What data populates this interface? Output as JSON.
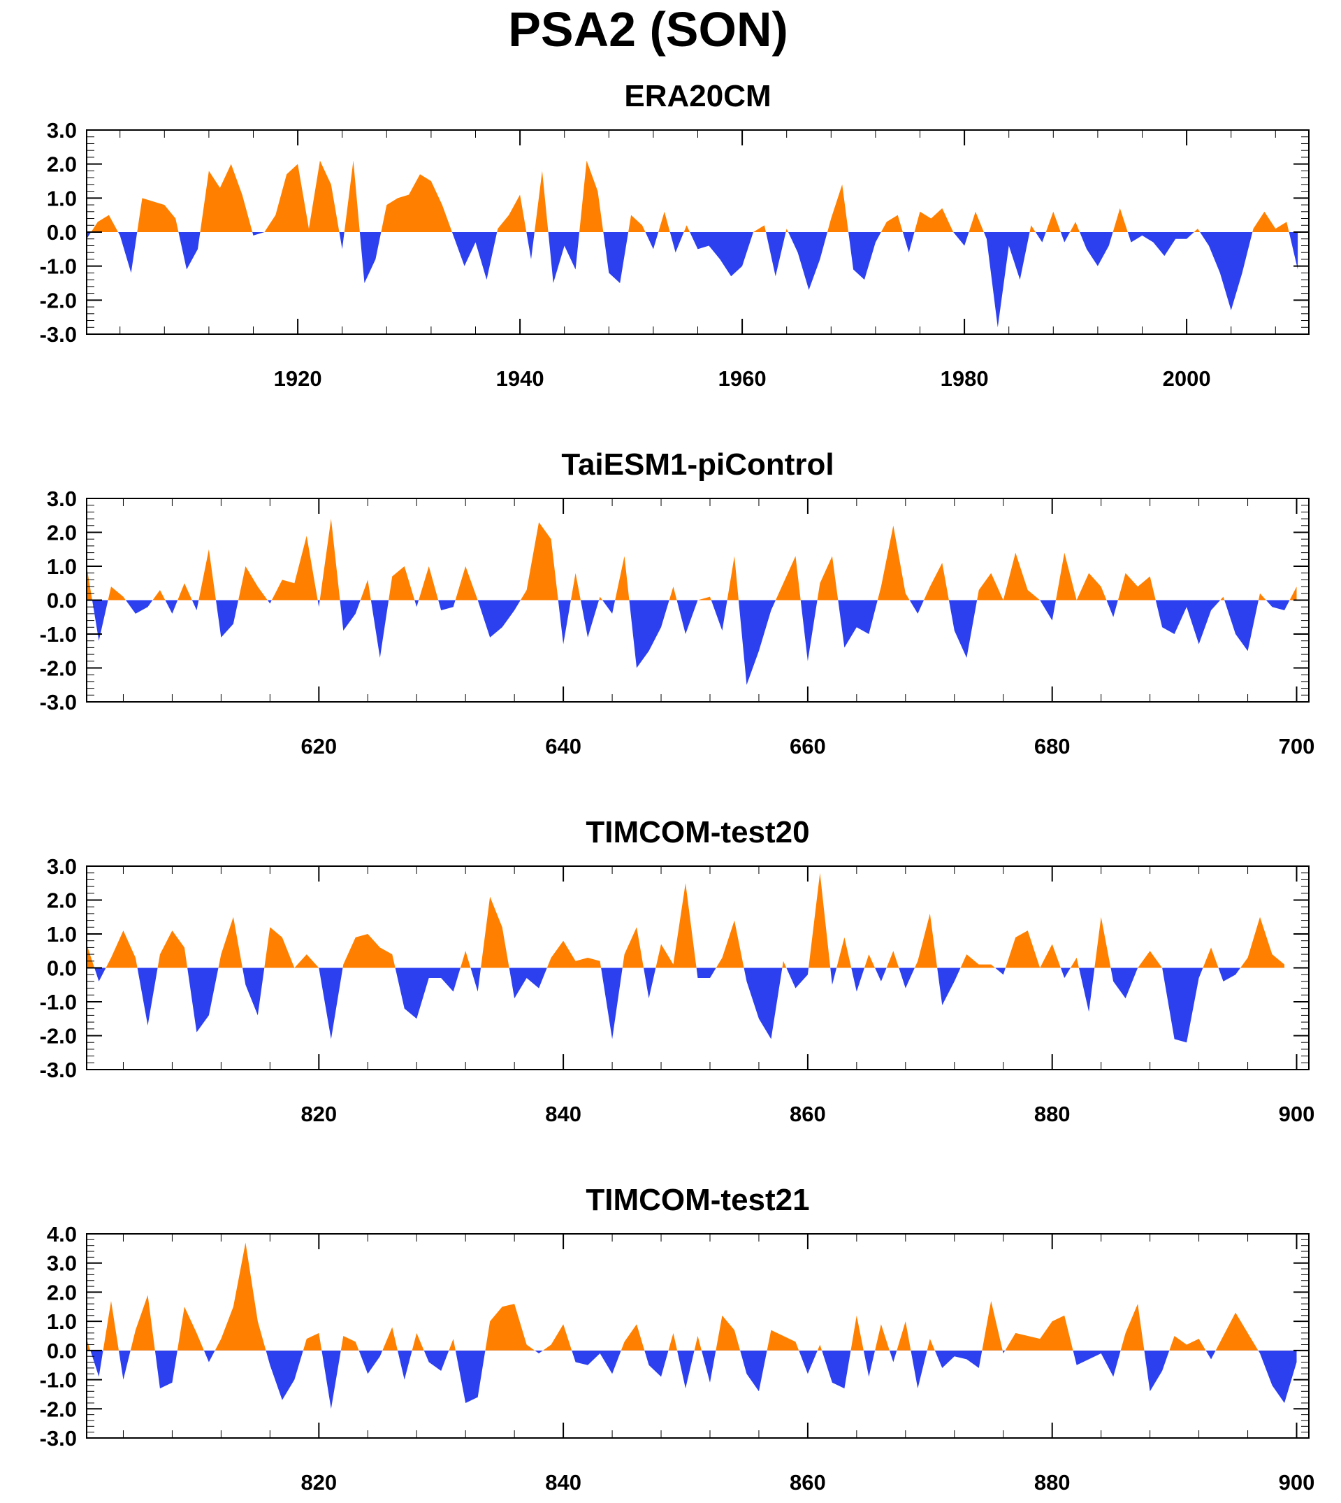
{
  "title": "PSA2 (SON)",
  "colors": {
    "positive": "#ff8000",
    "negative": "#2d40f0",
    "axis": "#000000"
  },
  "chart_data": [
    {
      "type": "area",
      "title": "ERA20CM",
      "x_start": 1901,
      "xlim": [
        1901,
        2011
      ],
      "ylim": [
        -3,
        3
      ],
      "yticks": [
        3.0,
        2.0,
        1.0,
        0.0,
        -1.0,
        -2.0,
        -3.0
      ],
      "xticks": [
        1920,
        1940,
        1960,
        1980,
        2000
      ],
      "values": [
        -0.2,
        0.3,
        0.5,
        -0.1,
        -1.2,
        1.0,
        0.9,
        0.8,
        0.4,
        -1.1,
        -0.5,
        1.8,
        1.3,
        2.0,
        1.1,
        -0.1,
        0.0,
        0.5,
        1.7,
        2.0,
        0.1,
        2.1,
        1.4,
        -0.5,
        2.1,
        -1.5,
        -0.8,
        0.8,
        1.0,
        1.1,
        1.7,
        1.5,
        0.8,
        -0.1,
        -1.0,
        -0.3,
        -1.4,
        0.1,
        0.5,
        1.1,
        -0.8,
        1.8,
        -1.5,
        -0.4,
        -1.1,
        2.1,
        1.2,
        -1.2,
        -1.5,
        0.5,
        0.2,
        -0.5,
        0.6,
        -0.6,
        0.2,
        -0.5,
        -0.4,
        -0.8,
        -1.3,
        -1.0,
        0.0,
        0.2,
        -1.3,
        0.1,
        -0.6,
        -1.7,
        -0.8,
        0.4,
        1.4,
        -1.1,
        -1.4,
        -0.3,
        0.3,
        0.5,
        -0.6,
        0.6,
        0.4,
        0.7,
        0.0,
        -0.4,
        0.6,
        -0.2,
        -2.8,
        -0.4,
        -1.4,
        0.2,
        -0.3,
        0.6,
        -0.3,
        0.3,
        -0.5,
        -1.0,
        -0.4,
        0.7,
        -0.3,
        -0.1,
        -0.3,
        -0.7,
        -0.2,
        -0.2,
        0.1,
        -0.4,
        -1.2,
        -2.3,
        -1.2,
        0.1,
        0.6,
        0.1,
        0.3,
        -1.1
      ]
    },
    {
      "type": "area",
      "title": "TaiESM1-piControl",
      "x_start": 601,
      "xlim": [
        601,
        701
      ],
      "ylim": [
        -3,
        3
      ],
      "yticks": [
        3.0,
        2.0,
        1.0,
        0.0,
        -1.0,
        -2.0,
        -3.0
      ],
      "xticks": [
        620,
        640,
        660,
        680,
        700
      ],
      "values": [
        1.0,
        -1.2,
        0.4,
        0.1,
        -0.4,
        -0.2,
        0.3,
        -0.4,
        0.5,
        -0.3,
        1.5,
        -1.1,
        -0.7,
        1.0,
        0.4,
        -0.1,
        0.6,
        0.5,
        1.9,
        -0.2,
        2.4,
        -0.9,
        -0.4,
        0.6,
        -1.7,
        0.7,
        1.0,
        -0.2,
        1.0,
        -0.3,
        -0.2,
        1.0,
        0.0,
        -1.1,
        -0.8,
        -0.3,
        0.3,
        2.3,
        1.8,
        -1.3,
        0.8,
        -1.1,
        0.1,
        -0.4,
        1.3,
        -2.0,
        -1.5,
        -0.8,
        0.4,
        -1.0,
        0.0,
        0.1,
        -0.9,
        1.3,
        -2.5,
        -1.5,
        -0.3,
        0.5,
        1.3,
        -1.8,
        0.5,
        1.3,
        -1.4,
        -0.8,
        -1.0,
        0.4,
        2.2,
        0.2,
        -0.4,
        0.4,
        1.1,
        -0.9,
        -1.7,
        0.3,
        0.8,
        0.0,
        1.4,
        0.3,
        0.0,
        -0.6,
        1.4,
        0.0,
        0.8,
        0.4,
        -0.5,
        0.8,
        0.4,
        0.7,
        -0.8,
        -1.0,
        -0.2,
        -1.3,
        -0.3,
        0.1,
        -1.0,
        -1.5,
        0.2,
        -0.2,
        -0.3,
        0.4
      ]
    },
    {
      "type": "area",
      "title": "TIMCOM-test20",
      "x_start": 801,
      "xlim": [
        801,
        901
      ],
      "ylim": [
        -3,
        3
      ],
      "yticks": [
        3.0,
        2.0,
        1.0,
        0.0,
        -1.0,
        -2.0,
        -3.0
      ],
      "xticks": [
        820,
        840,
        860,
        880,
        900
      ],
      "values": [
        0.7,
        -0.4,
        0.3,
        1.1,
        0.3,
        -1.7,
        0.4,
        1.1,
        0.6,
        -1.9,
        -1.4,
        0.4,
        1.5,
        -0.5,
        -1.4,
        1.2,
        0.9,
        0.0,
        0.4,
        0.0,
        -2.1,
        0.1,
        0.9,
        1.0,
        0.6,
        0.4,
        -1.2,
        -1.5,
        -0.3,
        -0.3,
        -0.7,
        0.5,
        -0.7,
        2.1,
        1.2,
        -0.9,
        -0.3,
        -0.6,
        0.3,
        0.8,
        0.2,
        0.3,
        0.2,
        -2.1,
        0.4,
        1.2,
        -0.9,
        0.7,
        0.1,
        2.5,
        -0.3,
        -0.3,
        0.3,
        1.4,
        -0.4,
        -1.5,
        -2.1,
        0.2,
        -0.6,
        -0.2,
        2.8,
        -0.5,
        0.9,
        -0.7,
        0.4,
        -0.4,
        0.5,
        -0.6,
        0.2,
        1.6,
        -1.1,
        -0.4,
        0.4,
        0.1,
        0.1,
        -0.2,
        0.9,
        1.1,
        0.0,
        0.7,
        -0.3,
        0.3,
        -1.3,
        1.5,
        -0.4,
        -0.9,
        0.0,
        0.5,
        0.0,
        -2.1,
        -2.2,
        -0.3,
        0.6,
        -0.4,
        -0.2,
        0.3,
        1.5,
        0.4,
        0.1
      ]
    },
    {
      "type": "area",
      "title": "TIMCOM-test21",
      "x_start": 801,
      "xlim": [
        801,
        901
      ],
      "ylim": [
        -3,
        4
      ],
      "yticks": [
        4.0,
        3.0,
        2.0,
        1.0,
        0.0,
        -1.0,
        -2.0,
        -3.0
      ],
      "xticks": [
        820,
        840,
        860,
        880,
        900
      ],
      "values": [
        0.4,
        -0.9,
        1.7,
        -1.0,
        0.7,
        1.9,
        -1.3,
        -1.1,
        1.5,
        0.6,
        -0.4,
        0.4,
        1.5,
        3.7,
        1.0,
        -0.5,
        -1.7,
        -1.0,
        0.4,
        0.6,
        -2.0,
        0.5,
        0.3,
        -0.8,
        -0.2,
        0.8,
        -1.0,
        0.6,
        -0.4,
        -0.7,
        0.4,
        -1.8,
        -1.6,
        1.0,
        1.5,
        1.6,
        0.2,
        -0.1,
        0.2,
        0.9,
        -0.4,
        -0.5,
        -0.1,
        -0.8,
        0.3,
        0.9,
        -0.5,
        -0.9,
        0.6,
        -1.3,
        0.5,
        -1.1,
        1.2,
        0.7,
        -0.8,
        -1.4,
        0.7,
        0.5,
        0.3,
        -0.8,
        0.2,
        -1.1,
        -1.3,
        1.2,
        -0.9,
        0.9,
        -0.4,
        1.0,
        -1.3,
        0.4,
        -0.6,
        -0.2,
        -0.3,
        -0.6,
        1.7,
        -0.1,
        0.6,
        0.5,
        0.4,
        1.0,
        1.2,
        -0.5,
        -0.3,
        -0.1,
        -0.9,
        0.6,
        1.6,
        -1.4,
        -0.7,
        0.5,
        0.2,
        0.4,
        -0.3,
        0.5,
        1.3,
        0.6,
        -0.1,
        -1.2,
        -1.8,
        -0.4
      ]
    }
  ]
}
